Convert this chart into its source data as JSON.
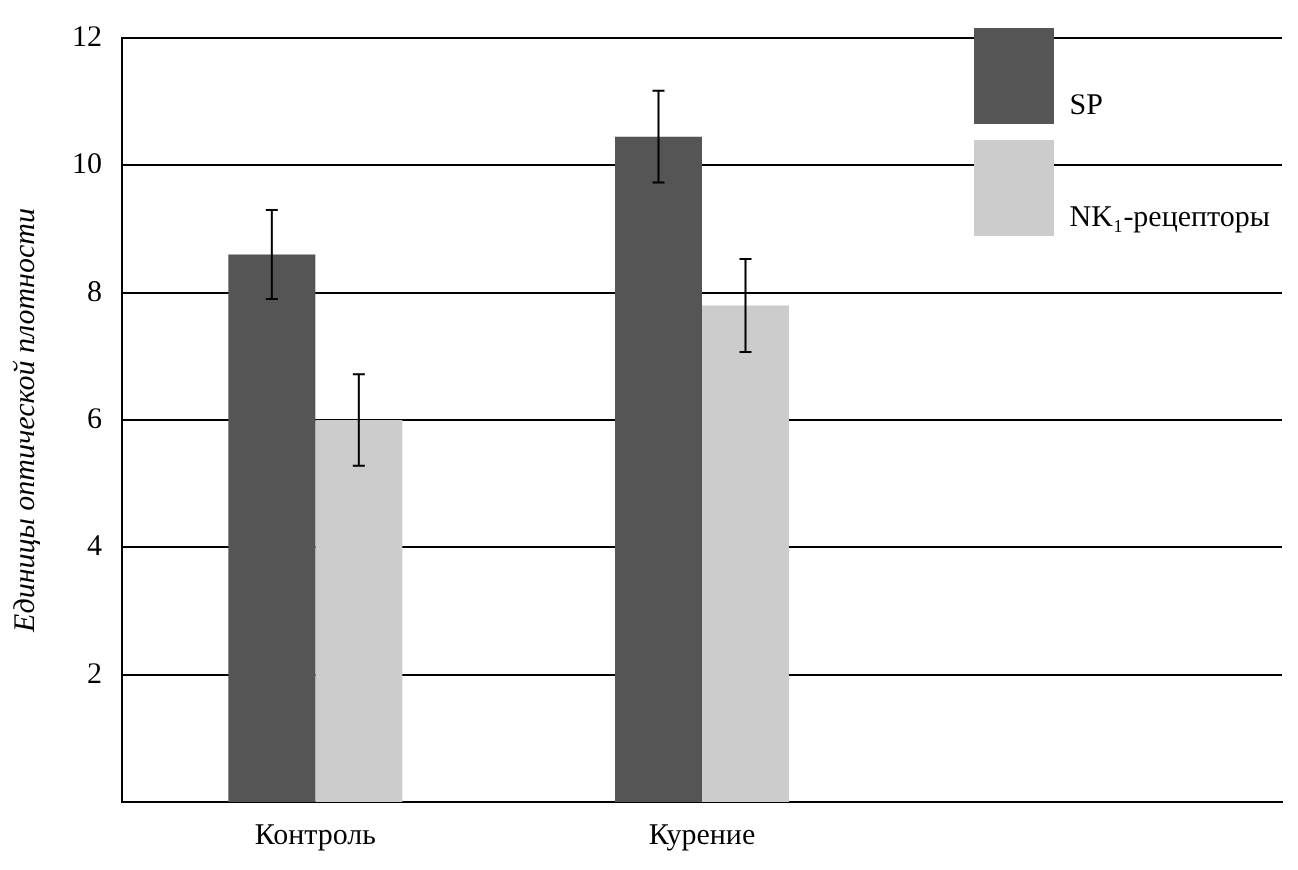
{
  "chart_data": {
    "type": "bar",
    "ylabel": "Единицы оптической плотности",
    "categories": [
      "Контроль",
      "Курение",
      null
    ],
    "series": [
      {
        "name": "SP",
        "color": "#555555",
        "values": [
          8.6,
          10.45,
          null
        ],
        "errors": [
          0.7,
          0.72,
          null
        ]
      },
      {
        "name": "NK₁-рецепторы",
        "color": "#cccccc",
        "values": [
          6.0,
          7.8,
          null
        ],
        "errors": [
          0.72,
          0.73,
          null
        ]
      }
    ],
    "ylim": [
      0,
      12
    ],
    "yticks": [
      2,
      4,
      6,
      8,
      10,
      12
    ],
    "grid": "y",
    "legend": "top right"
  }
}
